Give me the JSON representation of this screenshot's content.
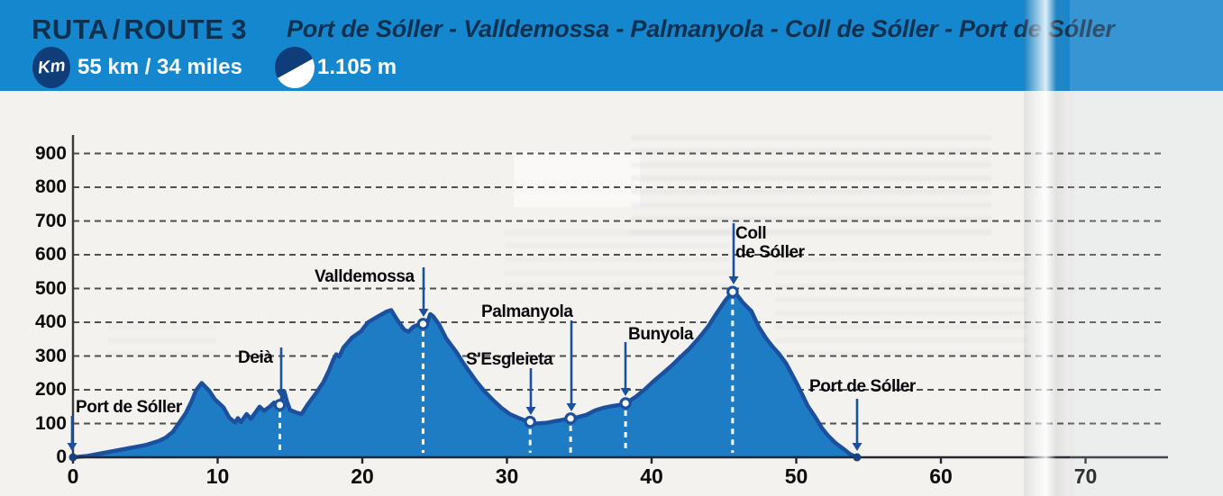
{
  "header": {
    "route_word": "RUTA",
    "separator": "/",
    "route_word_en": "ROUTE",
    "route_number": "3",
    "route_title": "Port de Sóller - Valldemossa - Palmanyola - Coll de Sóller - Port de Sóller",
    "distance_badge": "Km",
    "distance_text": "55 km / 34 miles",
    "elevation_gain_text": "1.105 m"
  },
  "colors": {
    "header_blue": "#1587cf",
    "title_navy": "#0f3150",
    "badge_navy": "#0e3d7a",
    "area_fill": "#1e7cc4",
    "area_outline": "#1b509f",
    "marker_navy": "#1b509f",
    "dot_navy": "#16437f",
    "grid_gray": "#4f4f4f",
    "axis_black": "#26262e",
    "white_dash": "#ffffff"
  },
  "chart_data": {
    "type": "area",
    "x_ticks": [
      0,
      10,
      20,
      30,
      40,
      50,
      60,
      70
    ],
    "y_ticks": [
      0,
      100,
      200,
      300,
      400,
      500,
      600,
      700,
      800,
      900
    ],
    "x_range": [
      0,
      75.5
    ],
    "y_range": [
      0,
      955
    ],
    "grid": "horizontal-dashed",
    "x_unit": "km",
    "y_unit": "m",
    "profile_km_m": [
      [
        0,
        0
      ],
      [
        1,
        4
      ],
      [
        2,
        12
      ],
      [
        3,
        20
      ],
      [
        4,
        28
      ],
      [
        5,
        36
      ],
      [
        5.9,
        48
      ],
      [
        6.4,
        58
      ],
      [
        6.9,
        75
      ],
      [
        7.3,
        100
      ],
      [
        7.8,
        131
      ],
      [
        8.2,
        166
      ],
      [
        8.5,
        198
      ],
      [
        8.9,
        220
      ],
      [
        9.4,
        198
      ],
      [
        9.8,
        172
      ],
      [
        10.1,
        160
      ],
      [
        10.4,
        148
      ],
      [
        10.8,
        118
      ],
      [
        11.2,
        103
      ],
      [
        11.4,
        116
      ],
      [
        11.6,
        104
      ],
      [
        12,
        128
      ],
      [
        12.3,
        114
      ],
      [
        12.9,
        150
      ],
      [
        13.2,
        138
      ],
      [
        13.6,
        150
      ],
      [
        13.9,
        162
      ],
      [
        14.1,
        153
      ],
      [
        14.3,
        155
      ],
      [
        14.6,
        196
      ],
      [
        14.8,
        165
      ],
      [
        15,
        140
      ],
      [
        15.4,
        133
      ],
      [
        15.8,
        128
      ],
      [
        16.2,
        155
      ],
      [
        16.8,
        190
      ],
      [
        17.3,
        222
      ],
      [
        17.7,
        258
      ],
      [
        18,
        290
      ],
      [
        18.2,
        305
      ],
      [
        18.4,
        298
      ],
      [
        18.7,
        325
      ],
      [
        19.3,
        355
      ],
      [
        19.9,
        373
      ],
      [
        20.4,
        400
      ],
      [
        21.1,
        418
      ],
      [
        21.7,
        432
      ],
      [
        22,
        436
      ],
      [
        22.4,
        408
      ],
      [
        22.9,
        378
      ],
      [
        23.2,
        372
      ],
      [
        23.5,
        386
      ],
      [
        23.9,
        394
      ],
      [
        24.2,
        395
      ],
      [
        24.5,
        400
      ],
      [
        24.7,
        424
      ],
      [
        24.9,
        418
      ],
      [
        25.3,
        394
      ],
      [
        25.8,
        352
      ],
      [
        26.5,
        312
      ],
      [
        27,
        278
      ],
      [
        27.4,
        254
      ],
      [
        27.9,
        224
      ],
      [
        28.4,
        198
      ],
      [
        29,
        171
      ],
      [
        29.6,
        147
      ],
      [
        30.2,
        128
      ],
      [
        30.9,
        115
      ],
      [
        31.3,
        108
      ],
      [
        31.6,
        105
      ],
      [
        32,
        100
      ],
      [
        32.7,
        102
      ],
      [
        33.3,
        107
      ],
      [
        33.7,
        110
      ],
      [
        34.1,
        113
      ],
      [
        34.4,
        115
      ],
      [
        34.8,
        118
      ],
      [
        35.5,
        126
      ],
      [
        36.1,
        139
      ],
      [
        36.7,
        147
      ],
      [
        37.3,
        152
      ],
      [
        37.8,
        155
      ],
      [
        38.2,
        160
      ],
      [
        38.9,
        179
      ],
      [
        39.5,
        200
      ],
      [
        40.1,
        224
      ],
      [
        40.7,
        246
      ],
      [
        41.4,
        272
      ],
      [
        42,
        297
      ],
      [
        42.6,
        321
      ],
      [
        43.2,
        350
      ],
      [
        43.9,
        387
      ],
      [
        44.5,
        427
      ],
      [
        45.1,
        465
      ],
      [
        45.6,
        490
      ],
      [
        45.9,
        481
      ],
      [
        46.3,
        459
      ],
      [
        46.6,
        446
      ],
      [
        46.9,
        433
      ],
      [
        47.4,
        387
      ],
      [
        47.9,
        353
      ],
      [
        48.4,
        326
      ],
      [
        48.8,
        307
      ],
      [
        49.3,
        278
      ],
      [
        49.6,
        254
      ],
      [
        50,
        222
      ],
      [
        50.4,
        187
      ],
      [
        50.8,
        152
      ],
      [
        51.3,
        120
      ],
      [
        51.8,
        85
      ],
      [
        52.2,
        64
      ],
      [
        52.7,
        43
      ],
      [
        53.2,
        27
      ],
      [
        53.7,
        10
      ],
      [
        54.2,
        0
      ]
    ],
    "waypoints": [
      {
        "label": "Port de Sóller",
        "km": 0,
        "elevation_m": 0
      },
      {
        "label": "Deià",
        "km": 14.3,
        "elevation_m": 155
      },
      {
        "label": "Valldemossa",
        "km": 24.2,
        "elevation_m": 395
      },
      {
        "label": "S'Esgleieta",
        "km": 31.6,
        "elevation_m": 105
      },
      {
        "label": "Palmanyola",
        "km": 34.4,
        "elevation_m": 115
      },
      {
        "label": "Bunyola",
        "km": 38.2,
        "elevation_m": 160
      },
      {
        "label": "Coll de Sóller",
        "km": 45.6,
        "elevation_m": 490
      },
      {
        "label": "Port de Sóller",
        "km": 54.2,
        "elevation_m": 0
      }
    ]
  }
}
